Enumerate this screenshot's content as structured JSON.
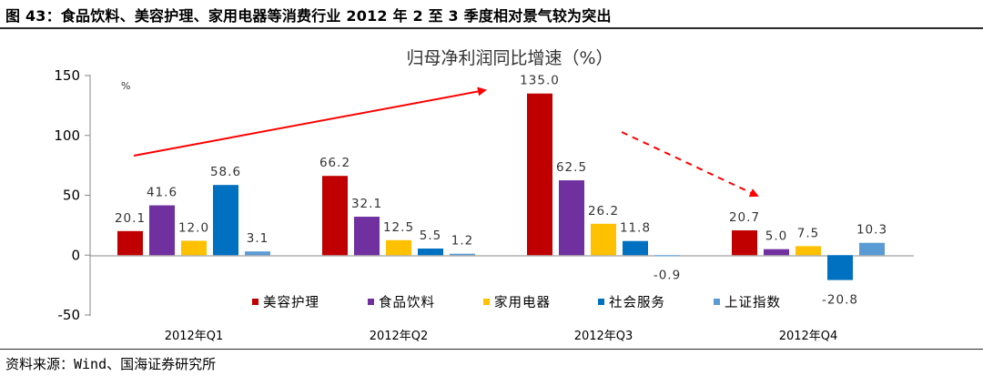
{
  "figure": {
    "title": "图 43：食品饮料、美容护理、家用电器等消费行业 2012 年 2 至 3 季度相对景气较为突出",
    "source": "资料来源：Wind、国海证券研究所"
  },
  "chart_data": {
    "type": "bar",
    "title": "归母净利润同比增速（%）",
    "unit_label": "%",
    "categories": [
      "2012年Q1",
      "2012年Q2",
      "2012年Q3",
      "2012年Q4"
    ],
    "series": [
      {
        "name": "美容护理",
        "color": "#c00000",
        "values": [
          20.1,
          66.2,
          135.0,
          20.7
        ],
        "labels": [
          "20.1",
          "66.2",
          "135.0",
          "20.7"
        ]
      },
      {
        "name": "食品饮料",
        "color": "#7030a0",
        "values": [
          41.6,
          32.1,
          62.5,
          5.0
        ],
        "labels": [
          "41.6",
          "32.1",
          "62.5",
          "5.0"
        ]
      },
      {
        "name": "家用电器",
        "color": "#ffc000",
        "values": [
          12.0,
          12.5,
          26.2,
          7.5
        ],
        "labels": [
          "12.0",
          "12.5",
          "26.2",
          "7.5"
        ]
      },
      {
        "name": "社会服务",
        "color": "#0070c0",
        "values": [
          58.6,
          5.5,
          11.8,
          -20.8
        ],
        "labels": [
          "58.6",
          "5.5",
          "11.8",
          "-20.8"
        ]
      },
      {
        "name": "上证指数",
        "color": "#5b9bd5",
        "values": [
          3.1,
          1.2,
          -0.9,
          10.3
        ],
        "labels": [
          "3.1",
          "1.2",
          "-0.9",
          "10.3"
        ]
      }
    ],
    "yticks": [
      150,
      100,
      50,
      0,
      -50
    ],
    "ylim": [
      -50,
      150
    ],
    "legend_position": "inside-bottom",
    "annotations": [
      "red solid arrow rising from Q1 toward Q3",
      "red dashed arrow falling from Q3 toward Q4"
    ],
    "grid": false
  }
}
